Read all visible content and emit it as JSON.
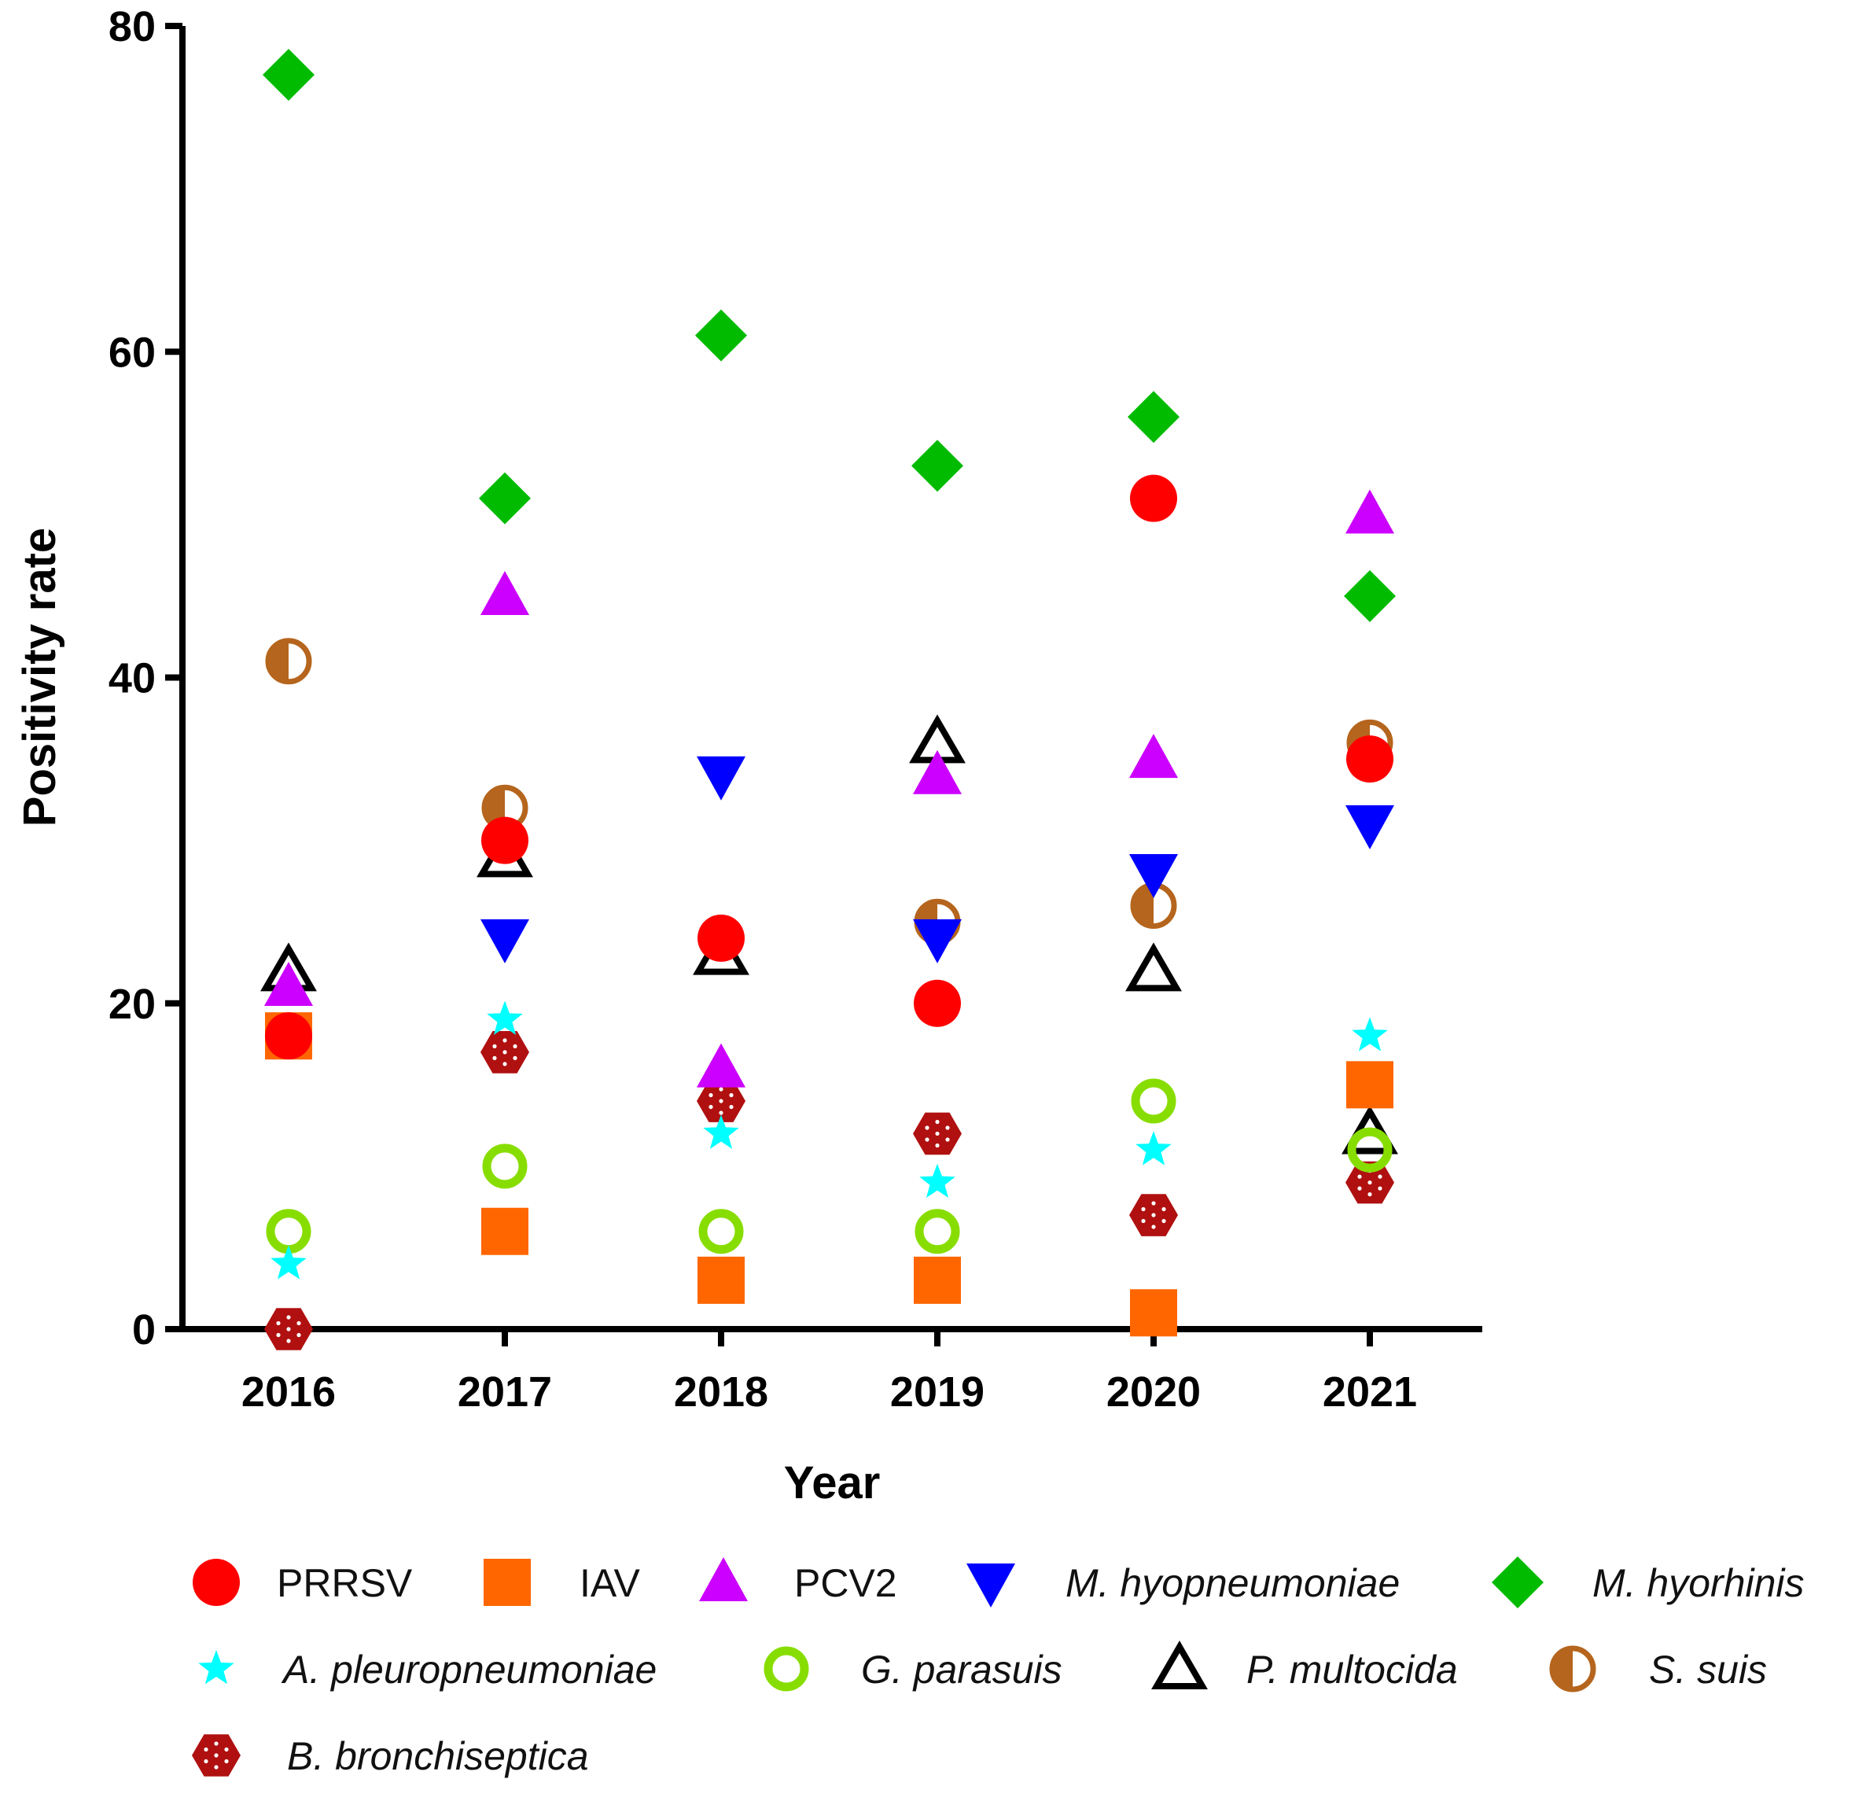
{
  "chart_data": {
    "type": "scatter",
    "title": "",
    "xlabel": "Year",
    "ylabel": "Positivity rate",
    "categories": [
      "2016",
      "2017",
      "2018",
      "2019",
      "2020",
      "2021"
    ],
    "ylim": [
      0,
      80
    ],
    "yticks": [
      0,
      20,
      40,
      60,
      80
    ],
    "grid": false,
    "legend_position": "bottom",
    "series": [
      {
        "name": "PRRSV",
        "marker": "circle-filled",
        "color": "#ff0000",
        "italic": false,
        "values": [
          18,
          30,
          24,
          20,
          51,
          35
        ]
      },
      {
        "name": "IAV",
        "marker": "square-filled",
        "color": "#ff6600",
        "italic": false,
        "values": [
          18,
          6,
          3,
          3,
          1,
          15
        ]
      },
      {
        "name": "PCV2",
        "marker": "triangle-up-filled",
        "color": "#cc00ff",
        "italic": false,
        "values": [
          21,
          45,
          16,
          34,
          35,
          50
        ]
      },
      {
        "name": "M. hyopneumoniae",
        "marker": "triangle-down-filled",
        "color": "#0000ff",
        "italic": true,
        "values": [
          null,
          24,
          34,
          24,
          28,
          31
        ]
      },
      {
        "name": "M. hyorhinis",
        "marker": "diamond-filled",
        "color": "#00bb00",
        "italic": true,
        "values": [
          77,
          51,
          61,
          53,
          56,
          45
        ]
      },
      {
        "name": "A. pleuropneumoniae",
        "marker": "star-filled",
        "color": "#00ffff",
        "italic": true,
        "values": [
          4,
          19,
          12,
          9,
          11,
          18
        ]
      },
      {
        "name": "G. parasuis",
        "marker": "circle-open",
        "color": "#88dd00",
        "italic": true,
        "values": [
          6,
          10,
          6,
          6,
          14,
          11
        ]
      },
      {
        "name": "P. multocida",
        "marker": "triangle-up-open",
        "color": "#000000",
        "italic": true,
        "values": [
          22,
          29,
          23,
          36,
          22,
          12
        ]
      },
      {
        "name": "S. suis",
        "marker": "circle-half",
        "color": "#b5651d",
        "italic": true,
        "values": [
          41,
          32,
          24,
          25,
          26,
          36
        ]
      },
      {
        "name": "B. bronchiseptica",
        "marker": "hexagon-dotted",
        "color": "#b01010",
        "italic": true,
        "values": [
          0,
          17,
          14,
          12,
          7,
          9
        ]
      }
    ]
  }
}
